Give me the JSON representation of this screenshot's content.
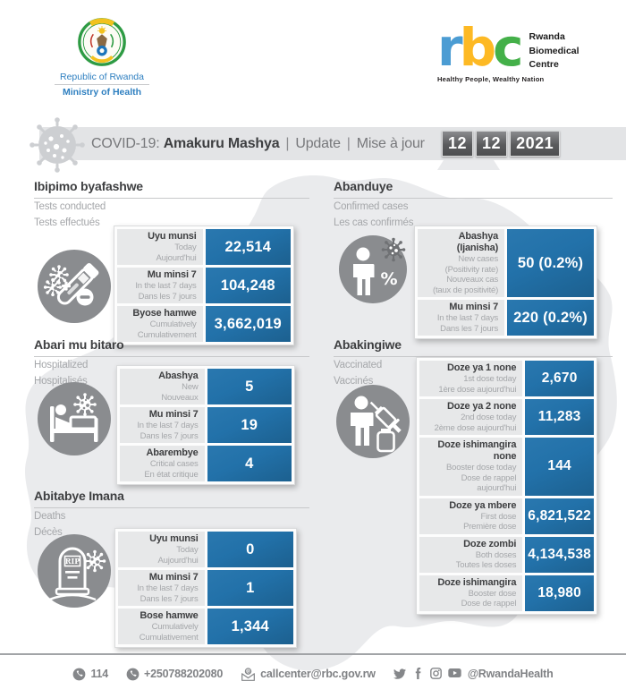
{
  "header": {
    "government": {
      "country": "Republic of Rwanda",
      "ministry": "Ministry of Health"
    },
    "rbc": {
      "letters": [
        "r",
        "b",
        "c"
      ],
      "name_lines": [
        "Rwanda",
        "Biomedical",
        "Centre"
      ],
      "tagline": "Healthy People, Wealthy Nation"
    }
  },
  "banner": {
    "prefix": "COVID-19:",
    "title": "Amakuru Mashya",
    "separator": "|",
    "label_update": "Update",
    "label_mise": "Mise à jour",
    "date_parts": [
      "12",
      "12",
      "2021"
    ]
  },
  "sections": [
    {
      "id": "tests",
      "title": "Ibipimo byafashwe",
      "subtitles": [
        "Tests conducted",
        "Tests effectués"
      ],
      "icon": "test-tube-icon",
      "rows": [
        {
          "label": "Uyu munsi",
          "sublabels": [
            "Today",
            "Aujourd'hui"
          ],
          "value": "22,514"
        },
        {
          "label": "Mu minsi 7",
          "sublabels": [
            "In the last 7 days",
            "Dans les 7 jours"
          ],
          "value": "104,248"
        },
        {
          "label": "Byose hamwe",
          "sublabels": [
            "Cumulatively",
            "Cumulativement"
          ],
          "value": "3,662,019"
        }
      ]
    },
    {
      "id": "confirmed",
      "title": "Abanduye",
      "subtitles": [
        "Confirmed cases",
        "Les cas confirmés"
      ],
      "icon": "person-percent-icon",
      "rows": [
        {
          "label": "Abashya (Ijanisha)",
          "sublabels": [
            "New cases",
            "(Positivity rate)",
            "Nouveaux cas",
            "(taux de positivité)"
          ],
          "value": "50 (0.2%)"
        },
        {
          "label": "Mu minsi 7",
          "sublabels": [
            "In the last 7 days",
            "Dans les 7 jours"
          ],
          "value": "220 (0.2%)"
        }
      ]
    },
    {
      "id": "hospitalized",
      "title": "Abari mu bitaro",
      "subtitles": [
        "Hospitalized",
        "Hospitalisés"
      ],
      "icon": "hospital-bed-icon",
      "rows": [
        {
          "label": "Abashya",
          "sublabels": [
            "New",
            "Nouveaux"
          ],
          "value": "5"
        },
        {
          "label": "Mu minsi 7",
          "sublabels": [
            "In the last 7 days",
            "Dans les 7 jours"
          ],
          "value": "19"
        },
        {
          "label": "Abarembye",
          "sublabels": [
            "Critical cases",
            "En état critique"
          ],
          "value": "4"
        }
      ]
    },
    {
      "id": "vaccinated",
      "title": "Abakingiwe",
      "subtitles": [
        "Vaccinated",
        "Vaccinés"
      ],
      "icon": "syringe-person-icon",
      "rows": [
        {
          "label": "Doze ya 1 none",
          "sublabels": [
            "1st dose today",
            "1ère dose aujourd'hui"
          ],
          "value": "2,670"
        },
        {
          "label": "Doze ya 2 none",
          "sublabels": [
            "2nd dose today",
            "2ème dose aujourd'hui"
          ],
          "value": "11,283"
        },
        {
          "label": "Doze ishimangira none",
          "sublabels": [
            "Booster dose today",
            "Dose de rappel aujourd'hui"
          ],
          "value": "144"
        },
        {
          "label": "Doze ya mbere",
          "sublabels": [
            "First dose",
            "Première dose"
          ],
          "value": "6,821,522"
        },
        {
          "label": "Doze zombi",
          "sublabels": [
            "Both doses",
            "Toutes les doses"
          ],
          "value": "4,134,538"
        },
        {
          "label": "Doze ishimangira",
          "sublabels": [
            "Booster dose",
            "Dose de rappel"
          ],
          "value": "18,980"
        }
      ]
    },
    {
      "id": "deaths",
      "title": "Abitabye Imana",
      "subtitles": [
        "Deaths",
        "Décès"
      ],
      "icon": "tombstone-icon",
      "rows": [
        {
          "label": "Uyu munsi",
          "sublabels": [
            "Today",
            "Aujourd'hui"
          ],
          "value": "0"
        },
        {
          "label": "Mu minsi 7",
          "sublabels": [
            "In the last 7 days",
            "Dans les 7 jours"
          ],
          "value": "1"
        },
        {
          "label": "Bose hamwe",
          "sublabels": [
            "Cumulatively",
            "Cumulativement"
          ],
          "value": "1,344"
        }
      ]
    }
  ],
  "footer": {
    "phone_short": "114",
    "phone_long": "+250788202080",
    "email": "callcenter@rbc.gov.rw",
    "handle": "@RwandaHealth",
    "social_icons": [
      "twitter",
      "facebook",
      "instagram",
      "youtube"
    ]
  },
  "colors": {
    "accent_blue": "#2271A9",
    "label_bg": "#E7E8E9",
    "banner_gray": "#E3E4E6",
    "icon_gray": "#8A8C8F",
    "title_dark": "#3E3F41",
    "sub_gray": "#A5A7AA",
    "gov_blue": "#2E7FC0",
    "rbc_letter_colors": [
      "#4B9CD3",
      "#FDB924",
      "#44B049"
    ]
  }
}
